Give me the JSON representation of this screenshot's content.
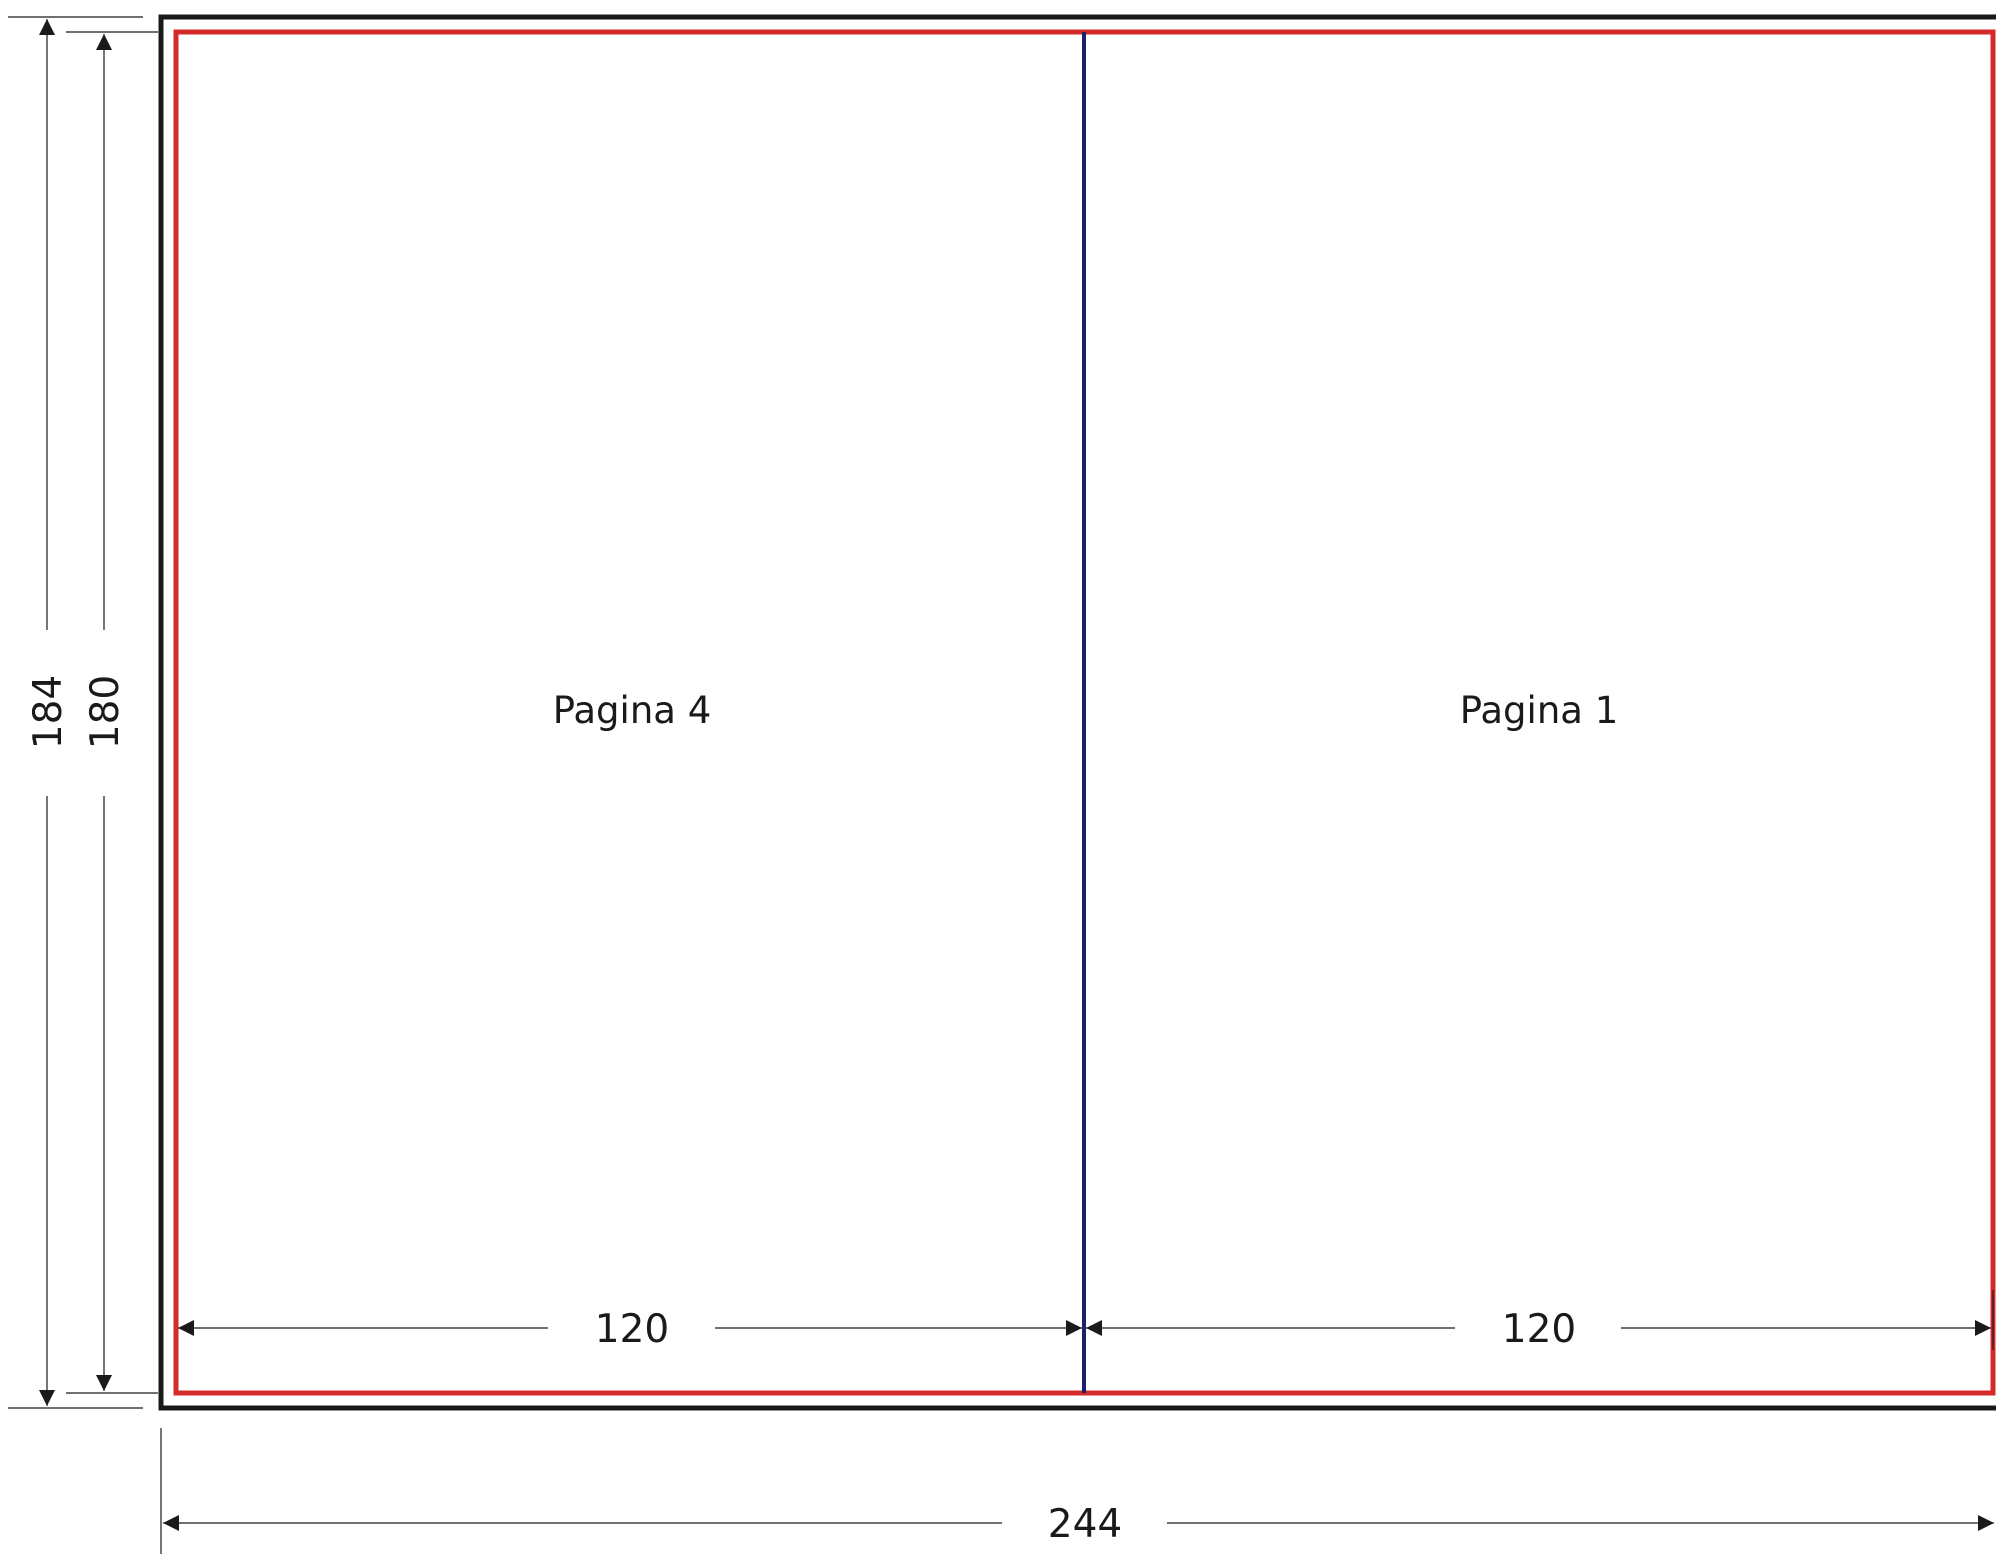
{
  "colors": {
    "trim_outline": "#1a1a1a",
    "bleed_outline": "#d42a2a",
    "fold_line": "#1f1f6b",
    "dimension": "#1a1a1a",
    "background": "#ffffff"
  },
  "pages": {
    "left_label": "Pagina 4",
    "right_label": "Pagina 1"
  },
  "dimensions": {
    "outer_height": "184",
    "inner_height": "180",
    "left_panel_width": "120",
    "right_panel_width": "120",
    "total_width": "244"
  }
}
